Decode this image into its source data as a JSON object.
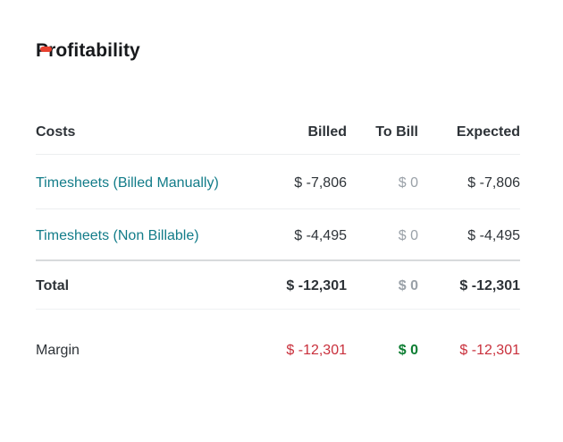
{
  "page": {
    "title": "Profitability"
  },
  "table": {
    "columns": [
      "Costs",
      "Billed",
      "To Bill",
      "Expected"
    ],
    "rows": [
      {
        "label": "Timesheets (Billed Manually)",
        "billed": "$ -7,806",
        "to_bill": "$ 0",
        "expected": "$ -7,806"
      },
      {
        "label": "Timesheets (Non Billable)",
        "billed": "$ -4,495",
        "to_bill": "$ 0",
        "expected": "$ -4,495"
      }
    ],
    "total": {
      "label": "Total",
      "billed": "$ -12,301",
      "to_bill": "$ 0",
      "expected": "$ -12,301"
    },
    "margin": {
      "label": "Margin",
      "billed": "$ -12,301",
      "to_bill": "$ 0",
      "expected": "$ -12,301"
    }
  },
  "colors": {
    "title_color": "#17191c",
    "text_dark": "#2e3338",
    "text_muted": "#9aa1a8",
    "link_teal": "#127c89",
    "negative_red": "#c9303c",
    "positive_green": "#0e7e33",
    "divider_light": "#eceef0",
    "divider_strong": "#d8dadc",
    "divider_faint": "#eff1f3",
    "red_dash": "#e8402f"
  }
}
